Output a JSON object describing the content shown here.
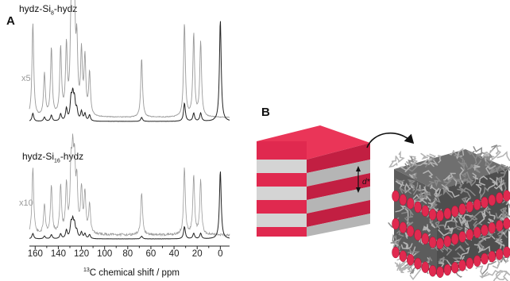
{
  "panel_a": {
    "label": "A",
    "spectrum_top": {
      "title_prefix": "hydz-Si",
      "title_sub": "8",
      "title_suffix": "-hydz",
      "multiplier": "x5"
    },
    "spectrum_bottom": {
      "title_prefix": "hydz-Si",
      "title_sub": "16",
      "title_suffix": "-hydz",
      "multiplier": "x10"
    },
    "x_axis": {
      "title_sup": "13",
      "title_text": "C chemical shift / ppm",
      "ticks": [
        "160",
        "140",
        "120",
        "100",
        "80",
        "60",
        "40",
        "20",
        "0"
      ],
      "range": [
        165,
        -8
      ],
      "reversed": true
    }
  },
  "panel_b": {
    "label": "B",
    "spacing_label": "d*",
    "colors": {
      "red_layer": "#e0294f",
      "grey_layer": "#cfcfcf",
      "polymer": "#8a8a8a"
    }
  },
  "chart_data": [
    {
      "type": "line",
      "x_unit": "ppm",
      "xlim": [
        165,
        -8
      ],
      "series": [
        {
          "peaks_ppm": [
            162,
            152,
            146,
            138,
            133,
            129,
            127.5,
            126,
            124,
            120,
            117,
            113,
            68,
            31,
            23,
            17,
            0
          ]
        }
      ]
    },
    {
      "type": "line",
      "x_unit": "ppm",
      "xlim": [
        165,
        -8
      ],
      "series": [
        {
          "peaks_ppm": [
            162,
            152,
            146,
            138,
            133,
            129,
            127.5,
            126,
            124,
            120,
            117,
            113,
            68,
            31,
            23,
            17,
            0
          ]
        }
      ]
    }
  ]
}
